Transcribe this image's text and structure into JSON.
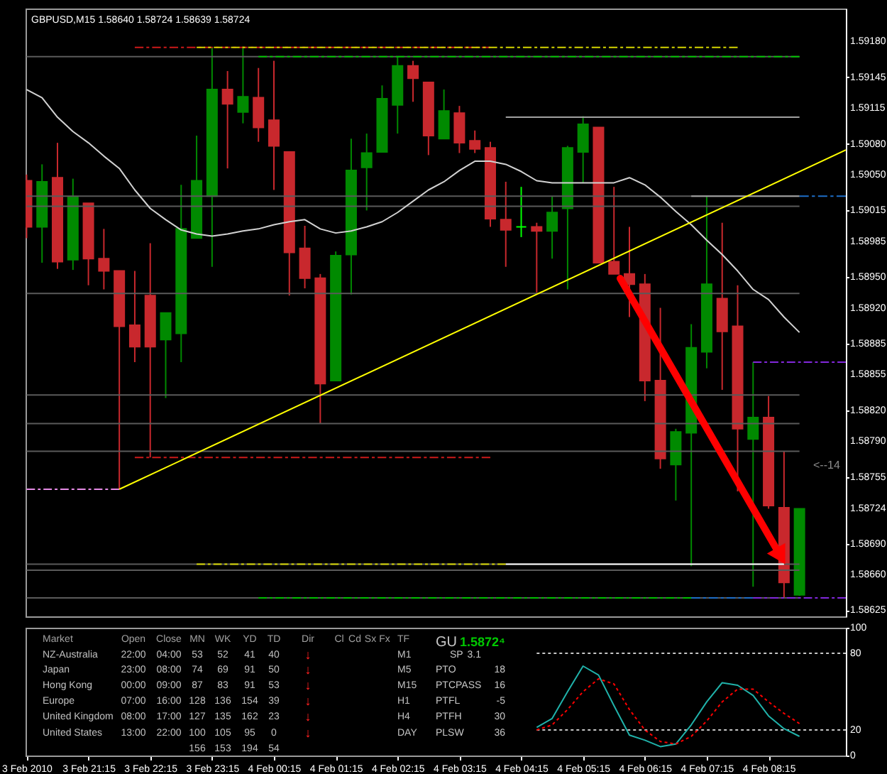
{
  "chart_data": [
    {
      "type": "candlestick",
      "title": "GBPUSD,M15 1.58640 1.58724 1.58639 1.58724",
      "x": [
        "2010-02-03T20:15",
        "2010-02-03T20:30",
        "2010-02-03T20:45",
        "2010-02-03T21:00",
        "2010-02-03T21:15",
        "2010-02-03T21:30",
        "2010-02-03T21:45",
        "2010-02-03T22:00",
        "2010-02-03T22:15",
        "2010-02-03T22:30",
        "2010-02-03T22:45",
        "2010-02-03T23:00",
        "2010-02-03T23:15",
        "2010-02-03T23:30",
        "2010-02-03T23:45",
        "2010-02-04T00:00",
        "2010-02-04T00:15",
        "2010-02-04T00:30",
        "2010-02-04T00:45",
        "2010-02-04T01:00",
        "2010-02-04T01:15",
        "2010-02-04T01:30",
        "2010-02-04T01:45",
        "2010-02-04T02:00",
        "2010-02-04T02:15",
        "2010-02-04T02:30",
        "2010-02-04T02:45",
        "2010-02-04T03:00",
        "2010-02-04T03:15",
        "2010-02-04T03:30",
        "2010-02-04T03:45",
        "2010-02-04T04:00",
        "2010-02-04T04:15",
        "2010-02-04T04:30",
        "2010-02-04T04:45",
        "2010-02-04T05:00",
        "2010-02-04T05:15",
        "2010-02-04T05:30",
        "2010-02-04T05:45",
        "2010-02-04T06:00",
        "2010-02-04T06:15",
        "2010-02-04T06:30",
        "2010-02-04T06:45",
        "2010-02-04T07:00",
        "2010-02-04T07:15",
        "2010-02-04T07:30",
        "2010-02-04T07:45",
        "2010-02-04T08:00",
        "2010-02-04T08:15",
        "2010-02-04T08:30",
        "2010-02-04T08:45"
      ],
      "ohlc": [
        [
          1.59044,
          1.5905,
          1.58988,
          1.58999
        ],
        [
          1.58999,
          1.5906,
          1.58964,
          1.59043
        ],
        [
          1.59047,
          1.59081,
          1.58958,
          1.58965
        ],
        [
          1.58967,
          1.59046,
          1.58957,
          1.59028
        ],
        [
          1.59022,
          1.59022,
          1.58942,
          1.58968
        ],
        [
          1.58968,
          1.58997,
          1.58938,
          1.58956
        ],
        [
          1.58956,
          1.58956,
          1.58743,
          1.58902
        ],
        [
          1.58903,
          1.58956,
          1.58867,
          1.58882
        ],
        [
          1.58932,
          1.58983,
          1.58774,
          1.58882
        ],
        [
          1.58889,
          1.58915,
          1.58832,
          1.58915
        ],
        [
          1.58895,
          1.5904,
          1.58867,
          1.58997
        ],
        [
          1.58988,
          1.59088,
          1.58988,
          1.59044
        ],
        [
          1.59029,
          1.59174,
          1.5896,
          1.59133
        ],
        [
          1.59133,
          1.59151,
          1.59056,
          1.59119
        ],
        [
          1.59111,
          1.59175,
          1.591,
          1.59126
        ],
        [
          1.59125,
          1.59154,
          1.59082,
          1.59096
        ],
        [
          1.59103,
          1.59161,
          1.59035,
          1.59078
        ],
        [
          1.59072,
          1.59072,
          1.58932,
          1.58974
        ],
        [
          1.58978,
          1.59,
          1.58939,
          1.58949
        ],
        [
          1.58949,
          1.58953,
          1.58807,
          1.58846
        ],
        [
          1.58849,
          1.58975,
          1.58849,
          1.58971
        ],
        [
          1.58972,
          1.59085,
          1.58933,
          1.59054
        ],
        [
          1.59057,
          1.5909,
          1.59015,
          1.59071
        ],
        [
          1.59072,
          1.59137,
          1.59072,
          1.59124
        ],
        [
          1.59118,
          1.59165,
          1.5909,
          1.59156
        ],
        [
          1.59156,
          1.59161,
          1.59121,
          1.59144
        ],
        [
          1.5914,
          1.5914,
          1.59069,
          1.59088
        ],
        [
          1.59085,
          1.59133,
          1.59085,
          1.59112
        ],
        [
          1.5911,
          1.59117,
          1.59071,
          1.59081
        ],
        [
          1.59083,
          1.59093,
          1.59071,
          1.59075
        ],
        [
          1.59076,
          1.59082,
          1.58999,
          1.59007
        ],
        [
          1.59006,
          1.59043,
          1.5896,
          1.58996
        ],
        [
          1.58999,
          1.59038,
          1.58989,
          1.58999
        ],
        [
          1.58999,
          1.59003,
          1.58935,
          1.58995
        ],
        [
          1.58995,
          1.59029,
          1.58968,
          1.59013
        ],
        [
          1.59017,
          1.59078,
          1.58938,
          1.59076
        ],
        [
          1.59072,
          1.59107,
          1.59042,
          1.59099
        ],
        [
          1.59096,
          1.59096,
          1.58964,
          1.58964
        ],
        [
          1.58965,
          1.59038,
          1.58953,
          1.58953
        ],
        [
          1.58953,
          1.58999,
          1.58911,
          1.58943
        ],
        [
          1.58943,
          1.58953,
          1.58829,
          1.58849
        ],
        [
          1.58849,
          1.5892,
          1.58763,
          1.58773
        ],
        [
          1.58767,
          1.58802,
          1.58732,
          1.58799
        ],
        [
          1.58798,
          1.58904,
          1.58668,
          1.58881
        ],
        [
          1.58877,
          1.59029,
          1.58861,
          1.58943
        ],
        [
          1.58929,
          1.59003,
          1.5884,
          1.58897
        ],
        [
          1.58902,
          1.58942,
          1.58741,
          1.58802
        ],
        [
          1.58792,
          1.58867,
          1.58648,
          1.58813
        ],
        [
          1.58813,
          1.58834,
          1.58724,
          1.58727
        ],
        [
          1.58725,
          1.5878,
          1.58637,
          1.58652
        ],
        [
          1.5864,
          1.58724,
          1.58639,
          1.58724
        ]
      ],
      "colors": [
        "#c8282d",
        "#008a00",
        "#c8282d",
        "#008a00",
        "#c8282d",
        "#c8282d",
        "#c8282d",
        "#c8282d",
        "#c8282d",
        "#008a00",
        "#008a00",
        "#008a00",
        "#008a00",
        "#c8282d",
        "#008a00",
        "#c8282d",
        "#c8282d",
        "#c8282d",
        "#c8282d",
        "#c8282d",
        "#008a00",
        "#008a00",
        "#008a00",
        "#008a00",
        "#008a00",
        "#c8282d",
        "#c8282d",
        "#008a00",
        "#c8282d",
        "#c8282d",
        "#c8282d",
        "#c8282d",
        "#00ff00",
        "#c8282d",
        "#008a00",
        "#008a00",
        "#008a00",
        "#c8282d",
        "#c8282d",
        "#c8282d",
        "#c8282d",
        "#c8282d",
        "#008a00",
        "#008a00",
        "#008a00",
        "#c8282d",
        "#c8282d",
        "#008a00",
        "#c8282d",
        "#c8282d",
        "#008a00"
      ],
      "series": [
        {
          "type": "line",
          "color": "#5a5a5a",
          "x": [
            "2010-02-03T20:15",
            "2010-02-04T08:45"
          ],
          "values": [
            1.59165,
            1.59165
          ]
        },
        {
          "type": "line",
          "color": "#5a5a5a",
          "x": [
            "2010-02-03T20:15",
            "2010-02-04T08:45"
          ],
          "values": [
            1.59029,
            1.59029
          ]
        },
        {
          "type": "line",
          "color": "#5a5a5a",
          "x": [
            "2010-02-03T20:15",
            "2010-02-04T08:45"
          ],
          "values": [
            1.59019,
            1.59019
          ]
        },
        {
          "type": "line",
          "color": "#5a5a5a",
          "x": [
            "2010-02-03T20:15",
            "2010-02-04T08:45"
          ],
          "values": [
            1.58934,
            1.58934
          ]
        },
        {
          "type": "line",
          "color": "#5a5a5a",
          "x": [
            "2010-02-03T20:15",
            "2010-02-04T08:45"
          ],
          "values": [
            1.58835,
            1.58835
          ]
        },
        {
          "type": "line",
          "color": "#5a5a5a",
          "x": [
            "2010-02-03T20:15",
            "2010-02-04T08:45"
          ],
          "values": [
            1.58807,
            1.58807
          ]
        },
        {
          "type": "line",
          "color": "#5a5a5a",
          "x": [
            "2010-02-03T20:15",
            "2010-02-04T08:45"
          ],
          "values": [
            1.5878,
            1.5878
          ]
        },
        {
          "type": "line",
          "color": "#5a5a5a",
          "x": [
            "2010-02-03T20:15",
            "2010-02-04T08:45"
          ],
          "values": [
            1.5867,
            1.5867
          ]
        },
        {
          "type": "line",
          "color": "#5a5a5a",
          "x": [
            "2010-02-03T20:15",
            "2010-02-04T08:45"
          ],
          "values": [
            1.58664,
            1.58664
          ]
        },
        {
          "type": "line",
          "color": "#5a5a5a",
          "x": [
            "2010-02-03T20:15",
            "2010-02-04T08:45"
          ],
          "values": [
            1.58637,
            1.58637
          ]
        },
        {
          "type": "line",
          "color": "#cc1a1a",
          "line_style": "dashed",
          "x": [
            "2010-02-03T22:00",
            "2010-02-04T03:45"
          ],
          "values": [
            1.59174,
            1.59174
          ]
        },
        {
          "type": "line",
          "color": "#d4d400",
          "line_style": "dashed",
          "x": [
            "2010-02-03T23:00",
            "2010-02-04T07:45"
          ],
          "values": [
            1.59174,
            1.59174
          ]
        },
        {
          "type": "line",
          "color": "#00c000",
          "line_style": "dashed",
          "x": [
            "2010-02-04T00:00",
            "2010-02-04T08:45"
          ],
          "values": [
            1.59165,
            1.59165
          ]
        },
        {
          "type": "line",
          "color": "#a0a0a0",
          "x": [
            "2010-02-04T04:00",
            "2010-02-04T08:45"
          ],
          "values": [
            1.59106,
            1.59106
          ]
        },
        {
          "type": "line",
          "color": "#a0a0a0",
          "x": [
            "2010-02-04T07:00",
            "2010-02-04T08:45"
          ],
          "values": [
            1.59029,
            1.59029
          ]
        },
        {
          "type": "line",
          "color": "#1e6ec8",
          "line_style": "dashed",
          "x": [
            "2010-02-04T08:45",
            "2010-02-04T09:30"
          ],
          "values": [
            1.59029,
            1.59029
          ]
        },
        {
          "type": "line",
          "color": "#8228dc",
          "line_style": "dashed",
          "x": [
            "2010-02-04T08:00",
            "2010-02-04T09:30"
          ],
          "values": [
            1.58867,
            1.58867
          ]
        },
        {
          "type": "line",
          "color": "#e68ce6",
          "line_style": "dashed",
          "x": [
            "2010-02-03T20:15",
            "2010-02-03T21:45"
          ],
          "values": [
            1.58743,
            1.58743
          ]
        },
        {
          "type": "line",
          "color": "#cc1a1a",
          "line_style": "dashed",
          "x": [
            "2010-02-03T22:00",
            "2010-02-04T03:45"
          ],
          "values": [
            1.58774,
            1.58774
          ]
        },
        {
          "type": "line",
          "color": "#d4d400",
          "line_style": "dashed",
          "x": [
            "2010-02-03T23:00",
            "2010-02-04T04:00"
          ],
          "values": [
            1.5867,
            1.5867
          ]
        },
        {
          "type": "line",
          "color": "#ffffff",
          "x": [
            "2010-02-04T04:00",
            "2010-02-04T08:30"
          ],
          "values": [
            1.5867,
            1.5867
          ]
        },
        {
          "type": "line",
          "color": "#00c000",
          "line_style": "dashed",
          "x": [
            "2010-02-04T00:00",
            "2010-02-04T07:00"
          ],
          "values": [
            1.58637,
            1.58637
          ]
        },
        {
          "type": "line",
          "color": "#1e6ec8",
          "line_style": "dashed",
          "x": [
            "2010-02-04T07:00",
            "2010-02-04T08:00"
          ],
          "values": [
            1.58637,
            1.58637
          ]
        },
        {
          "type": "line",
          "color": "#8228dc",
          "line_style": "dashed",
          "x": [
            "2010-02-04T08:00",
            "2010-02-04T09:30"
          ],
          "values": [
            1.58637,
            1.58637
          ]
        },
        {
          "type": "line",
          "color": "#d2d2d2",
          "values": [
            1.59133,
            1.59125,
            1.59106,
            1.59092,
            1.59081,
            1.59068,
            1.59056,
            1.59035,
            1.59017,
            1.59006,
            1.58996,
            1.58992,
            1.5899,
            1.58992,
            1.58995,
            1.58997,
            1.59001,
            1.59004,
            1.59006,
            1.58997,
            1.58993,
            1.58995,
            1.58999,
            1.59004,
            1.59013,
            1.59024,
            1.59035,
            1.59043,
            1.59054,
            1.59063,
            1.59063,
            1.5906,
            1.59053,
            1.59044,
            1.59042,
            1.59042,
            1.59042,
            1.59042,
            1.59042,
            1.59047,
            1.5904,
            1.59028,
            1.59014,
            1.59001,
            1.58986,
            1.58972,
            1.58956,
            1.58938,
            1.58928,
            1.58911,
            1.58896
          ]
        },
        {
          "type": "line",
          "color": "#ffff00",
          "x": [
            "2010-02-03T21:45",
            "2010-02-04T09:30"
          ],
          "values": [
            1.58743,
            1.59074
          ]
        }
      ],
      "xlim": [
        "2010-02-03T20:14",
        "2010-02-04T09:30"
      ],
      "ylim": [
        1.58619,
        1.59212
      ],
      "yticks": [
        {
          "value": 1.5918,
          "label": "1.59180"
        },
        1.59145,
        1.59115,
        {
          "value": 1.5908,
          "label": "1.59080"
        },
        {
          "value": 1.5905,
          "label": "1.59050"
        },
        1.59015,
        1.58985,
        {
          "value": 1.5895,
          "label": "1.58950"
        },
        {
          "value": 1.5892,
          "label": "1.58920"
        },
        1.58885,
        1.58855,
        {
          "value": 1.5882,
          "label": "1.58820"
        },
        {
          "value": 1.5879,
          "label": "1.58790"
        },
        1.58755,
        1.58724,
        {
          "value": 1.5869,
          "label": "1.58690"
        },
        {
          "value": 1.5866,
          "label": "1.58660"
        },
        1.58625
      ],
      "tick_labels": "y",
      "annotations": [
        "<--14"
      ]
    },
    {
      "type": "line",
      "x": [
        "2010-02-04T04:30",
        "2010-02-04T04:45",
        "2010-02-04T05:00",
        "2010-02-04T05:15",
        "2010-02-04T05:30",
        "2010-02-04T05:45",
        "2010-02-04T06:00",
        "2010-02-04T06:15",
        "2010-02-04T06:30",
        "2010-02-04T06:45",
        "2010-02-04T07:00",
        "2010-02-04T07:15",
        "2010-02-04T07:30",
        "2010-02-04T07:45",
        "2010-02-04T08:00",
        "2010-02-04T08:15",
        "2010-02-04T08:30",
        "2010-02-04T08:45"
      ],
      "series": [
        {
          "color": "#20b2aa",
          "values": [
            22,
            29,
            50,
            70,
            63,
            39,
            16,
            12,
            7,
            9,
            24,
            42,
            57,
            55,
            47,
            31,
            21,
            15
          ]
        },
        {
          "color": "#ff0000",
          "line_style": "dotted",
          "values": [
            20,
            24,
            36,
            50,
            60,
            56,
            36,
            20,
            11,
            9,
            15,
            27,
            42,
            52,
            52,
            42,
            33,
            25
          ]
        }
      ],
      "xlim": [
        "2010-02-03T20:14",
        "2010-02-04T09:30"
      ],
      "xticks": [
        {
          "value": "2010-02-03T20:15",
          "label": "3 Feb 2010"
        },
        {
          "value": "2010-02-03T21:15",
          "label": "3 Feb 21:15"
        },
        {
          "value": "2010-02-03T22:15",
          "label": "3 Feb 22:15"
        },
        {
          "value": "2010-02-03T23:15",
          "label": "3 Feb 23:15"
        },
        {
          "value": "2010-02-04T00:15",
          "label": "4 Feb 00:15"
        },
        {
          "value": "2010-02-04T01:15",
          "label": "4 Feb 01:15"
        },
        {
          "value": "2010-02-04T02:15",
          "label": "4 Feb 02:15"
        },
        {
          "value": "2010-02-04T03:15",
          "label": "4 Feb 03:15"
        },
        {
          "value": "2010-02-04T04:15",
          "label": "4 Feb 04:15"
        },
        {
          "value": "2010-02-04T05:15",
          "label": "4 Feb 05:15"
        },
        {
          "value": "2010-02-04T06:15",
          "label": "4 Feb 06:15"
        },
        {
          "value": "2010-02-04T07:15",
          "label": "4 Feb 07:15"
        },
        {
          "value": "2010-02-04T08:15",
          "label": "4 Feb 08:15"
        }
      ],
      "ylim": [
        0,
        100
      ],
      "yticks": [
        0,
        20,
        80,
        100
      ],
      "ref_lines": [
        {
          "axis": "y",
          "value": 20,
          "color": "#c8c8c8",
          "line_style": "dotted"
        },
        {
          "axis": "y",
          "value": 80,
          "color": "#c8c8c8",
          "line_style": "dotted"
        }
      ]
    },
    {
      "type": "other",
      "annotations": [
        "Market",
        "Open",
        "Close",
        "MN",
        "WK",
        "YD",
        "TD",
        "Dir",
        "Cl",
        "Cd",
        "Sx",
        "Fx",
        "TF",
        "GU",
        "1.5872⁴",
        "NZ-Australia",
        "22:00",
        "04:00",
        "53",
        "52",
        "41",
        "40",
        "↓",
        "M1",
        "SP",
        "3.1",
        "Japan",
        "23:00",
        "08:00",
        "74",
        "69",
        "91",
        "50",
        "↓",
        "M5",
        "PTO",
        "18",
        "Hong Kong",
        "00:00",
        "09:00",
        "87",
        "83",
        "91",
        "53",
        "↓",
        "M15",
        "PTCPASS",
        "16",
        "Europe",
        "07:00",
        "16:00",
        "128",
        "136",
        "154",
        "39",
        "↓",
        "H1",
        "PTFL",
        "-5",
        "United Kingdom",
        "08:00",
        "17:00",
        "127",
        "135",
        "162",
        "23",
        "↓",
        "H4",
        "PTFH",
        "30",
        "United States",
        "13:00",
        "22:00",
        "100",
        "105",
        "95",
        "0",
        "↓",
        "DAY",
        "PLSW",
        "36",
        "156",
        "153",
        "194",
        "54"
      ]
    }
  ]
}
